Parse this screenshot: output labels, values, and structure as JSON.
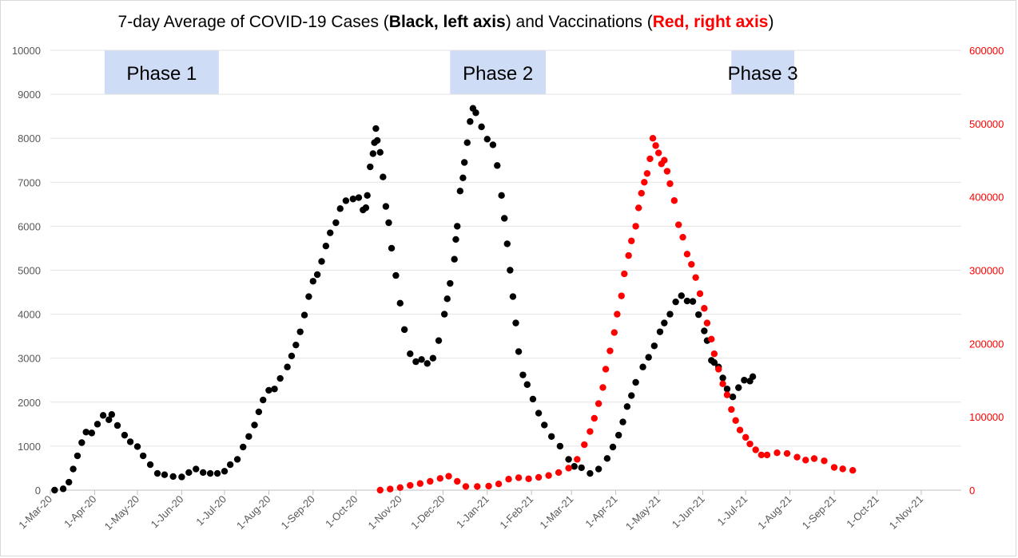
{
  "title": {
    "part1": "7-day Average of COVID-19 Cases (",
    "part2": "Black, left axis",
    "part3": ") and Vaccinations (",
    "part4": "Red, right axis",
    "part5": ")"
  },
  "chart_data": {
    "type": "scatter",
    "x_ticks": [
      "1-Mar-20",
      "1-Apr-20",
      "1-May-20",
      "1-Jun-20",
      "1-Jul-20",
      "1-Aug-20",
      "1-Sep-20",
      "1-Oct-20",
      "1-Nov-20",
      "1-Dec-20",
      "1-Jan-21",
      "1-Feb-21",
      "1-Mar-21",
      "1-Apr-21",
      "1-May-21",
      "1-Jun-21",
      "1-Jul-21",
      "1-Aug-21",
      "1-Sep-21",
      "1-Oct-21",
      "1-Nov-21"
    ],
    "y_left_ticks": [
      "0",
      "1000",
      "2000",
      "3000",
      "4000",
      "5000",
      "6000",
      "7000",
      "8000",
      "9000",
      "10000"
    ],
    "y_right_ticks": [
      "0",
      "100000",
      "200000",
      "300000",
      "400000",
      "500000",
      "600000"
    ],
    "y_left_range": [
      0,
      10000
    ],
    "y_right_range": [
      0,
      600000
    ],
    "grid": true,
    "legend": "none",
    "phases": [
      {
        "label": "Phase 1",
        "start": "2020-04-08",
        "end": "2020-06-26"
      },
      {
        "label": "Phase 2",
        "start": "2020-12-06",
        "end": "2021-02-10"
      },
      {
        "label": "Phase 3",
        "start": "2021-06-21",
        "end": "2021-08-03"
      }
    ],
    "series": [
      {
        "axis": "left",
        "color": "#000000",
        "points": [
          [
            "2020-03-04",
            0
          ],
          [
            "2020-03-10",
            30
          ],
          [
            "2020-03-14",
            180
          ],
          [
            "2020-03-17",
            480
          ],
          [
            "2020-03-20",
            780
          ],
          [
            "2020-03-23",
            1080
          ],
          [
            "2020-03-26",
            1320
          ],
          [
            "2020-03-30",
            1300
          ],
          [
            "2020-04-03",
            1500
          ],
          [
            "2020-04-07",
            1700
          ],
          [
            "2020-04-11",
            1600
          ],
          [
            "2020-04-13",
            1720
          ],
          [
            "2020-04-17",
            1470
          ],
          [
            "2020-04-22",
            1250
          ],
          [
            "2020-04-26",
            1100
          ],
          [
            "2020-05-01",
            990
          ],
          [
            "2020-05-05",
            780
          ],
          [
            "2020-05-10",
            580
          ],
          [
            "2020-05-15",
            380
          ],
          [
            "2020-05-20",
            350
          ],
          [
            "2020-05-26",
            310
          ],
          [
            "2020-06-01",
            300
          ],
          [
            "2020-06-06",
            400
          ],
          [
            "2020-06-11",
            480
          ],
          [
            "2020-06-16",
            400
          ],
          [
            "2020-06-21",
            380
          ],
          [
            "2020-06-26",
            380
          ],
          [
            "2020-07-01",
            430
          ],
          [
            "2020-07-05",
            580
          ],
          [
            "2020-07-10",
            700
          ],
          [
            "2020-07-14",
            980
          ],
          [
            "2020-07-18",
            1220
          ],
          [
            "2020-07-22",
            1480
          ],
          [
            "2020-07-25",
            1780
          ],
          [
            "2020-07-28",
            2050
          ],
          [
            "2020-08-01",
            2270
          ],
          [
            "2020-08-05",
            2300
          ],
          [
            "2020-08-09",
            2540
          ],
          [
            "2020-08-14",
            2800
          ],
          [
            "2020-08-17",
            3050
          ],
          [
            "2020-08-20",
            3300
          ],
          [
            "2020-08-23",
            3600
          ],
          [
            "2020-08-26",
            3980
          ],
          [
            "2020-08-29",
            4400
          ],
          [
            "2020-09-01",
            4750
          ],
          [
            "2020-09-04",
            4900
          ],
          [
            "2020-09-07",
            5200
          ],
          [
            "2020-09-10",
            5550
          ],
          [
            "2020-09-13",
            5850
          ],
          [
            "2020-09-17",
            6080
          ],
          [
            "2020-09-20",
            6400
          ],
          [
            "2020-09-24",
            6580
          ],
          [
            "2020-09-29",
            6620
          ],
          [
            "2020-10-03",
            6650
          ],
          [
            "2020-10-06",
            6370
          ],
          [
            "2020-10-08",
            6420
          ],
          [
            "2020-10-09",
            6700
          ],
          [
            "2020-10-11",
            7350
          ],
          [
            "2020-10-13",
            7650
          ],
          [
            "2020-10-14",
            7900
          ],
          [
            "2020-10-15",
            8220
          ],
          [
            "2020-10-16",
            7950
          ],
          [
            "2020-10-18",
            7680
          ],
          [
            "2020-10-20",
            7120
          ],
          [
            "2020-10-22",
            6450
          ],
          [
            "2020-10-24",
            6080
          ],
          [
            "2020-10-26",
            5500
          ],
          [
            "2020-10-29",
            4880
          ],
          [
            "2020-11-01",
            4250
          ],
          [
            "2020-11-04",
            3650
          ],
          [
            "2020-11-08",
            3100
          ],
          [
            "2020-11-12",
            2920
          ],
          [
            "2020-11-16",
            2970
          ],
          [
            "2020-11-20",
            2880
          ],
          [
            "2020-11-24",
            3000
          ],
          [
            "2020-11-28",
            3400
          ],
          [
            "2020-12-02",
            4000
          ],
          [
            "2020-12-04",
            4350
          ],
          [
            "2020-12-06",
            4700
          ],
          [
            "2020-12-09",
            5250
          ],
          [
            "2020-12-10",
            5700
          ],
          [
            "2020-12-11",
            6000
          ],
          [
            "2020-12-13",
            6800
          ],
          [
            "2020-12-15",
            7100
          ],
          [
            "2020-12-16",
            7450
          ],
          [
            "2020-12-18",
            7900
          ],
          [
            "2020-12-20",
            8380
          ],
          [
            "2020-12-22",
            8680
          ],
          [
            "2020-12-24",
            8580
          ],
          [
            "2020-12-28",
            8260
          ],
          [
            "2021-01-01",
            7980
          ],
          [
            "2021-01-05",
            7850
          ],
          [
            "2021-01-08",
            7380
          ],
          [
            "2021-01-11",
            6700
          ],
          [
            "2021-01-13",
            6180
          ],
          [
            "2021-01-15",
            5600
          ],
          [
            "2021-01-17",
            5000
          ],
          [
            "2021-01-19",
            4400
          ],
          [
            "2021-01-21",
            3800
          ],
          [
            "2021-01-23",
            3150
          ],
          [
            "2021-01-26",
            2620
          ],
          [
            "2021-01-29",
            2400
          ],
          [
            "2021-02-02",
            2070
          ],
          [
            "2021-02-06",
            1750
          ],
          [
            "2021-02-10",
            1480
          ],
          [
            "2021-02-15",
            1220
          ],
          [
            "2021-02-21",
            1000
          ],
          [
            "2021-02-27",
            700
          ],
          [
            "2021-03-03",
            540
          ],
          [
            "2021-03-08",
            510
          ],
          [
            "2021-03-14",
            380
          ],
          [
            "2021-03-20",
            480
          ],
          [
            "2021-03-26",
            720
          ],
          [
            "2021-03-30",
            980
          ],
          [
            "2021-04-03",
            1250
          ],
          [
            "2021-04-06",
            1550
          ],
          [
            "2021-04-09",
            1900
          ],
          [
            "2021-04-12",
            2150
          ],
          [
            "2021-04-15",
            2450
          ],
          [
            "2021-04-20",
            2800
          ],
          [
            "2021-04-24",
            3020
          ],
          [
            "2021-04-28",
            3280
          ],
          [
            "2021-05-02",
            3600
          ],
          [
            "2021-05-05",
            3800
          ],
          [
            "2021-05-09",
            4000
          ],
          [
            "2021-05-13",
            4280
          ],
          [
            "2021-05-17",
            4420
          ],
          [
            "2021-05-21",
            4300
          ],
          [
            "2021-05-25",
            4290
          ],
          [
            "2021-05-29",
            3990
          ],
          [
            "2021-06-02",
            3620
          ],
          [
            "2021-06-04",
            3400
          ],
          [
            "2021-06-07",
            2950
          ],
          [
            "2021-06-09",
            2900
          ],
          [
            "2021-06-12",
            2800
          ],
          [
            "2021-06-15",
            2550
          ],
          [
            "2021-06-18",
            2300
          ],
          [
            "2021-06-22",
            2120
          ],
          [
            "2021-06-26",
            2330
          ],
          [
            "2021-06-30",
            2500
          ],
          [
            "2021-07-04",
            2480
          ],
          [
            "2021-07-06",
            2580
          ]
        ]
      },
      {
        "axis": "right",
        "color": "#ff0000",
        "points": [
          [
            "2020-10-18",
            0
          ],
          [
            "2020-10-25",
            1500
          ],
          [
            "2020-11-01",
            3500
          ],
          [
            "2020-11-08",
            6500
          ],
          [
            "2020-11-15",
            9000
          ],
          [
            "2020-11-22",
            12000
          ],
          [
            "2020-11-29",
            16000
          ],
          [
            "2020-12-05",
            19000
          ],
          [
            "2020-12-11",
            12000
          ],
          [
            "2020-12-17",
            5000
          ],
          [
            "2020-12-25",
            5000
          ],
          [
            "2021-01-02",
            5500
          ],
          [
            "2021-01-09",
            8500
          ],
          [
            "2021-01-16",
            15000
          ],
          [
            "2021-01-23",
            17000
          ],
          [
            "2021-01-30",
            15500
          ],
          [
            "2021-02-06",
            17500
          ],
          [
            "2021-02-13",
            20000
          ],
          [
            "2021-02-20",
            24000
          ],
          [
            "2021-02-27",
            30000
          ],
          [
            "2021-03-05",
            42000
          ],
          [
            "2021-03-10",
            62000
          ],
          [
            "2021-03-14",
            80000
          ],
          [
            "2021-03-17",
            98000
          ],
          [
            "2021-03-20",
            118000
          ],
          [
            "2021-03-23",
            140000
          ],
          [
            "2021-03-25",
            165000
          ],
          [
            "2021-03-28",
            190000
          ],
          [
            "2021-03-31",
            215000
          ],
          [
            "2021-04-02",
            240000
          ],
          [
            "2021-04-05",
            265000
          ],
          [
            "2021-04-07",
            295000
          ],
          [
            "2021-04-10",
            320000
          ],
          [
            "2021-04-12",
            340000
          ],
          [
            "2021-04-15",
            360000
          ],
          [
            "2021-04-17",
            385000
          ],
          [
            "2021-04-19",
            405000
          ],
          [
            "2021-04-21",
            420000
          ],
          [
            "2021-04-23",
            432000
          ],
          [
            "2021-04-25",
            452000
          ],
          [
            "2021-04-27",
            480000
          ],
          [
            "2021-04-29",
            470000
          ],
          [
            "2021-05-01",
            460000
          ],
          [
            "2021-05-03",
            445000
          ],
          [
            "2021-05-05",
            450000
          ],
          [
            "2021-05-07",
            435000
          ],
          [
            "2021-05-09",
            418000
          ],
          [
            "2021-05-12",
            395000
          ],
          [
            "2021-05-15",
            362000
          ],
          [
            "2021-05-18",
            345000
          ],
          [
            "2021-05-21",
            322000
          ],
          [
            "2021-05-24",
            308000
          ],
          [
            "2021-05-27",
            290000
          ],
          [
            "2021-05-30",
            268000
          ],
          [
            "2021-06-02",
            248000
          ],
          [
            "2021-06-04",
            228000
          ],
          [
            "2021-06-07",
            206000
          ],
          [
            "2021-06-09",
            186000
          ],
          [
            "2021-06-12",
            165000
          ],
          [
            "2021-06-15",
            145000
          ],
          [
            "2021-06-18",
            130000
          ],
          [
            "2021-06-21",
            110000
          ],
          [
            "2021-06-24",
            95000
          ],
          [
            "2021-06-27",
            82000
          ],
          [
            "2021-07-01",
            72000
          ],
          [
            "2021-07-04",
            63000
          ],
          [
            "2021-07-08",
            55000
          ],
          [
            "2021-07-12",
            48000
          ],
          [
            "2021-07-16",
            48000
          ],
          [
            "2021-07-23",
            51000
          ],
          [
            "2021-07-30",
            50000
          ],
          [
            "2021-08-06",
            45000
          ],
          [
            "2021-08-12",
            41000
          ],
          [
            "2021-08-18",
            43000
          ],
          [
            "2021-08-25",
            40000
          ],
          [
            "2021-09-01",
            31000
          ],
          [
            "2021-09-07",
            29000
          ],
          [
            "2021-09-14",
            27000
          ]
        ]
      }
    ]
  }
}
